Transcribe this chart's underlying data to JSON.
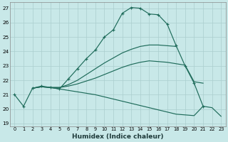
{
  "xlabel": "Humidex (Indice chaleur)",
  "xlim": [
    -0.5,
    23.5
  ],
  "ylim": [
    18.8,
    27.4
  ],
  "xticks": [
    0,
    1,
    2,
    3,
    4,
    5,
    6,
    7,
    8,
    9,
    10,
    11,
    12,
    13,
    14,
    15,
    16,
    17,
    18,
    19,
    20,
    21,
    22,
    23
  ],
  "yticks": [
    19,
    20,
    21,
    22,
    23,
    24,
    25,
    26,
    27
  ],
  "bg_color": "#c8e8e8",
  "grid_color": "#aacece",
  "line_color": "#1e6b5a",
  "curve_main_x": [
    0,
    1,
    2,
    3,
    4,
    5,
    6,
    7,
    8,
    9,
    10,
    11,
    12,
    13,
    14,
    15,
    16,
    17,
    18,
    19,
    20,
    21
  ],
  "curve_main_y": [
    21.0,
    20.2,
    21.45,
    21.6,
    21.5,
    21.4,
    22.1,
    22.8,
    23.5,
    24.1,
    25.0,
    25.5,
    26.65,
    27.05,
    27.0,
    26.6,
    26.55,
    25.9,
    24.4,
    23.0,
    21.8,
    20.2
  ],
  "curve_upper_x": [
    2,
    3,
    4,
    5,
    6,
    7,
    8,
    9,
    10,
    11,
    12,
    13,
    14,
    15,
    16,
    17,
    18
  ],
  "curve_upper_y": [
    21.45,
    21.55,
    21.5,
    21.5,
    21.7,
    22.0,
    22.4,
    22.8,
    23.2,
    23.55,
    23.9,
    24.15,
    24.35,
    24.45,
    24.45,
    24.4,
    24.35
  ],
  "curve_mid_x": [
    2,
    3,
    4,
    5,
    6,
    7,
    8,
    9,
    10,
    11,
    12,
    13,
    14,
    15,
    16,
    17,
    18,
    19,
    20,
    21
  ],
  "curve_mid_y": [
    21.45,
    21.55,
    21.5,
    21.5,
    21.6,
    21.75,
    21.95,
    22.15,
    22.4,
    22.65,
    22.9,
    23.1,
    23.25,
    23.35,
    23.3,
    23.25,
    23.15,
    23.05,
    21.9,
    21.8
  ],
  "curve_lower_x": [
    2,
    3,
    4,
    5,
    6,
    7,
    8,
    9,
    10,
    11,
    12,
    13,
    14,
    15,
    16,
    17,
    18,
    19,
    20,
    21,
    22,
    23
  ],
  "curve_lower_y": [
    21.45,
    21.55,
    21.5,
    21.4,
    21.3,
    21.2,
    21.1,
    21.0,
    20.85,
    20.7,
    20.55,
    20.4,
    20.25,
    20.1,
    19.95,
    19.8,
    19.65,
    19.6,
    19.55,
    20.2,
    20.1,
    19.5
  ]
}
